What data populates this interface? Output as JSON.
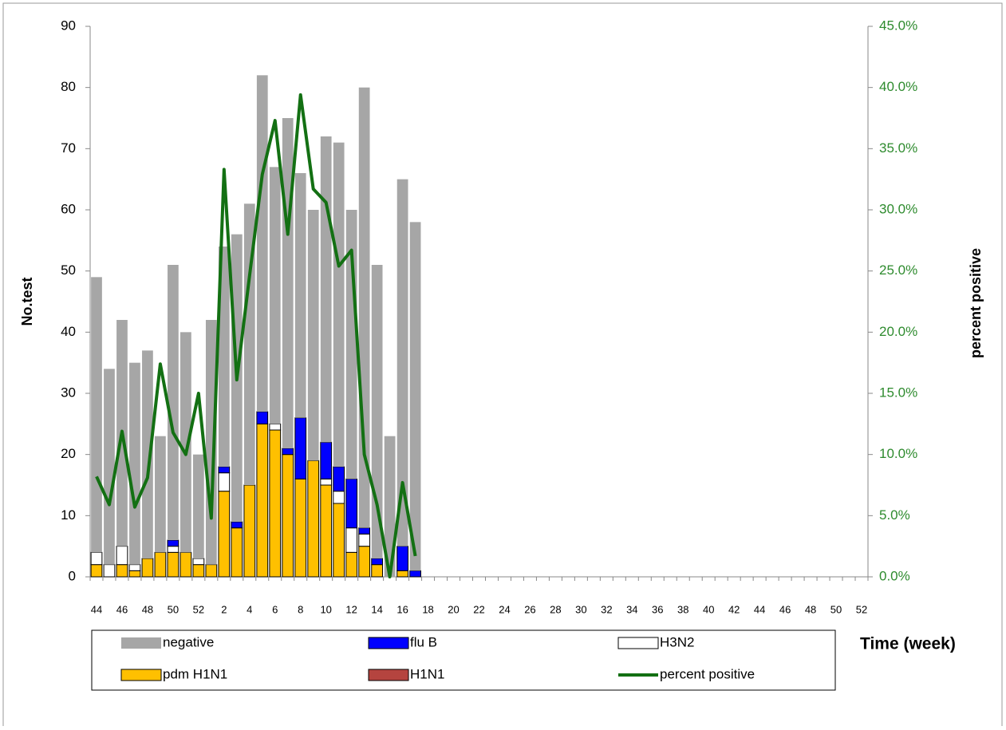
{
  "chart_data": {
    "type": "bar",
    "y_label": "No.test",
    "y2_label": "percent positive",
    "x_label": "Time (week)",
    "categories": [
      "44",
      null,
      "46",
      null,
      "48",
      null,
      "50",
      null,
      "52",
      null,
      "2",
      null,
      "4",
      null,
      "6",
      null,
      "8",
      null,
      "10",
      null,
      "12",
      null,
      "14",
      null,
      "16",
      null,
      "18",
      null,
      "20",
      null,
      "22",
      null,
      "24",
      null,
      "26",
      null,
      "28",
      null,
      "30",
      null,
      "32",
      null,
      "34",
      null,
      "36",
      null,
      "38",
      null,
      "40",
      null,
      "42",
      null,
      "44",
      null,
      "46",
      null,
      "48",
      null,
      "50",
      null,
      "52"
    ],
    "series": [
      {
        "name": "pdm H1N1",
        "color": "#ffc000",
        "values": [
          2,
          0,
          2,
          1,
          3,
          4,
          4,
          4,
          2,
          2,
          14,
          8,
          15,
          25,
          24,
          20,
          16,
          19,
          15,
          12,
          4,
          5,
          2,
          0,
          1,
          0,
          null,
          null,
          null,
          null,
          null,
          null,
          null,
          null,
          null,
          null,
          null,
          null,
          null,
          null,
          null,
          null,
          null,
          null,
          null,
          null,
          null,
          null,
          null,
          null,
          null,
          null,
          null,
          null,
          null,
          null,
          null,
          null,
          null,
          null,
          null
        ]
      },
      {
        "name": "H1N1",
        "color": "#b5443f",
        "values": [
          0,
          0,
          0,
          0,
          0,
          0,
          0,
          0,
          0,
          0,
          0,
          0,
          0,
          0,
          0,
          0,
          0,
          0,
          0,
          0,
          0,
          0,
          0,
          0,
          0,
          0,
          null,
          null,
          null,
          null,
          null,
          null,
          null,
          null,
          null,
          null,
          null,
          null,
          null,
          null,
          null,
          null,
          null,
          null,
          null,
          null,
          null,
          null,
          null,
          null,
          null,
          null,
          null,
          null,
          null,
          null,
          null,
          null,
          null,
          null,
          null
        ]
      },
      {
        "name": "H3N2",
        "color": "#ffffff",
        "values": [
          2,
          2,
          3,
          1,
          0,
          0,
          1,
          0,
          1,
          0,
          3,
          0,
          0,
          0,
          1,
          0,
          0,
          0,
          1,
          2,
          4,
          2,
          0,
          0,
          0,
          0,
          null,
          null,
          null,
          null,
          null,
          null,
          null,
          null,
          null,
          null,
          null,
          null,
          null,
          null,
          null,
          null,
          null,
          null,
          null,
          null,
          null,
          null,
          null,
          null,
          null,
          null,
          null,
          null,
          null,
          null,
          null,
          null,
          null,
          null,
          null
        ]
      },
      {
        "name": "flu B",
        "color": "#0000ff",
        "values": [
          0,
          0,
          0,
          0,
          0,
          0,
          1,
          0,
          0,
          0,
          1,
          1,
          0,
          2,
          0,
          1,
          10,
          0,
          6,
          4,
          8,
          1,
          1,
          0,
          4,
          1,
          null,
          null,
          null,
          null,
          null,
          null,
          null,
          null,
          null,
          null,
          null,
          null,
          null,
          null,
          null,
          null,
          null,
          null,
          null,
          null,
          null,
          null,
          null,
          null,
          null,
          null,
          null,
          null,
          null,
          null,
          null,
          null,
          null,
          null,
          null
        ]
      },
      {
        "name": "negative",
        "color": "#a6a6a6",
        "values": [
          45,
          32,
          37,
          33,
          34,
          19,
          45,
          36,
          17,
          40,
          36,
          47,
          46,
          55,
          42,
          54,
          40,
          41,
          50,
          53,
          44,
          72,
          48,
          23,
          60,
          57,
          null,
          null,
          null,
          null,
          null,
          null,
          null,
          null,
          null,
          null,
          null,
          null,
          null,
          null,
          null,
          null,
          null,
          null,
          null,
          null,
          null,
          null,
          null,
          null,
          null,
          null,
          null,
          null,
          null,
          null,
          null,
          null,
          null,
          null,
          null
        ]
      },
      {
        "name": "percent positive",
        "type": "line",
        "axis": "y2",
        "color": "#137013",
        "values": [
          8.2,
          5.9,
          11.9,
          5.7,
          8.1,
          17.4,
          11.8,
          10,
          15,
          4.8,
          33.3,
          16.1,
          24.6,
          32.9,
          37.3,
          28,
          39.4,
          31.7,
          30.6,
          25.4,
          26.7,
          10,
          5.9,
          0,
          7.7,
          1.7,
          null,
          null,
          null,
          null,
          null,
          null,
          null,
          null,
          null,
          null,
          null,
          null,
          null,
          null,
          null,
          null,
          null,
          null,
          null,
          null,
          null,
          null,
          null,
          null,
          null,
          null,
          null,
          null,
          null,
          null,
          null,
          null,
          null,
          null,
          null
        ]
      }
    ],
    "ylim": [
      0,
      90
    ],
    "yticks": [
      0,
      10,
      20,
      30,
      40,
      50,
      60,
      70,
      80,
      90
    ],
    "y2lim": [
      0,
      45
    ],
    "y2ticks": [
      {
        "value": 0,
        "label": "0.0%"
      },
      {
        "value": 5,
        "label": "5.0%"
      },
      {
        "value": 10,
        "label": "10.0%"
      },
      {
        "value": 15,
        "label": "15.0%"
      },
      {
        "value": 20,
        "label": "20.0%"
      },
      {
        "value": 25,
        "label": "25.0%"
      },
      {
        "value": 30,
        "label": "30.0%"
      },
      {
        "value": 35,
        "label": "35.0%"
      },
      {
        "value": 40,
        "label": "40.0%"
      },
      {
        "value": 45,
        "label": "45.0%"
      }
    ],
    "grid": false
  }
}
